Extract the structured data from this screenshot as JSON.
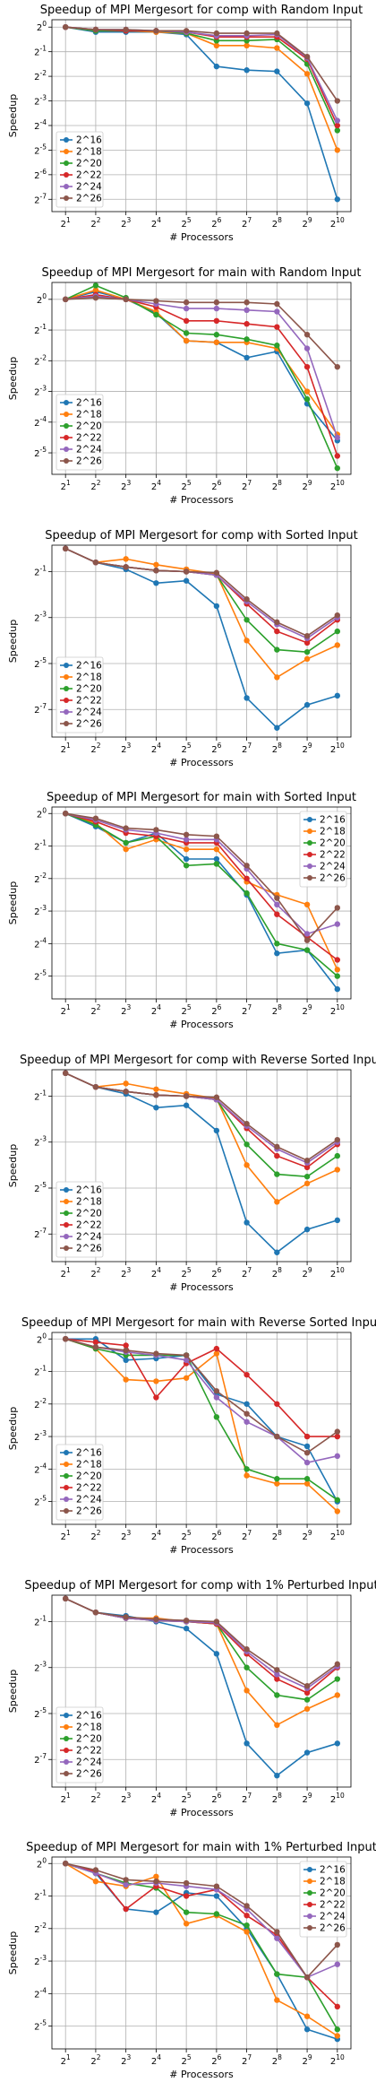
{
  "colors": [
    "#1f77b4",
    "#ff7f0e",
    "#2ca02c",
    "#d62728",
    "#9467bd",
    "#8c564b"
  ],
  "chart_data": [
    {
      "type": "line",
      "title": "Speedup of MPI Mergesort for comp with Random Input",
      "xlabel": "# Processors",
      "ylabel": "Speedup",
      "x_exponents": [
        1,
        2,
        3,
        4,
        5,
        6,
        7,
        8,
        9,
        10
      ],
      "x_ticks": [
        "2^1",
        "2^2",
        "2^3",
        "2^4",
        "2^5",
        "2^6",
        "2^7",
        "2^8",
        "2^9",
        "2^10"
      ],
      "y_scale": "log2",
      "y_exp_range": [
        -7.5,
        0.3
      ],
      "y_ticks": [
        "2^0",
        "2^-1",
        "2^-2",
        "2^-3",
        "2^-4",
        "2^-5",
        "2^-6",
        "2^-7"
      ],
      "y_tick_exps": [
        0,
        -1,
        -2,
        -3,
        -4,
        -5,
        -6,
        -7
      ],
      "legend": "lower-left",
      "grid": true,
      "series": [
        {
          "name": "2^16",
          "log2_values": [
            0,
            -0.2,
            -0.2,
            -0.2,
            -0.3,
            -1.6,
            -1.75,
            -1.8,
            -3.1,
            -7.0
          ]
        },
        {
          "name": "2^18",
          "log2_values": [
            0,
            -0.15,
            -0.15,
            -0.2,
            -0.25,
            -0.75,
            -0.75,
            -0.85,
            -1.9,
            -5.0
          ]
        },
        {
          "name": "2^20",
          "log2_values": [
            0,
            -0.15,
            -0.15,
            -0.15,
            -0.25,
            -0.55,
            -0.55,
            -0.5,
            -1.5,
            -4.2
          ]
        },
        {
          "name": "2^22",
          "log2_values": [
            0,
            -0.1,
            -0.15,
            -0.15,
            -0.2,
            -0.4,
            -0.4,
            -0.4,
            -1.3,
            -4.0
          ]
        },
        {
          "name": "2^24",
          "log2_values": [
            0,
            -0.1,
            -0.1,
            -0.15,
            -0.2,
            -0.35,
            -0.35,
            -0.3,
            -1.25,
            -3.8
          ]
        },
        {
          "name": "2^26",
          "log2_values": [
            0,
            -0.1,
            -0.1,
            -0.15,
            -0.15,
            -0.25,
            -0.25,
            -0.25,
            -1.2,
            -3.0
          ]
        }
      ]
    },
    {
      "type": "line",
      "title": "Speedup of MPI Mergesort for main with Random Input",
      "xlabel": "# Processors",
      "ylabel": "Speedup",
      "x_exponents": [
        1,
        2,
        3,
        4,
        5,
        6,
        7,
        8,
        9,
        10
      ],
      "x_ticks": [
        "2^1",
        "2^2",
        "2^3",
        "2^4",
        "2^5",
        "2^6",
        "2^7",
        "2^8",
        "2^9",
        "2^10"
      ],
      "y_scale": "log2",
      "y_exp_range": [
        -5.7,
        0.55
      ],
      "y_ticks": [
        "2^0",
        "2^-1",
        "2^-2",
        "2^-3",
        "2^-4",
        "2^-5"
      ],
      "y_tick_exps": [
        0,
        -1,
        -2,
        -3,
        -4,
        -5
      ],
      "legend": "lower-left",
      "grid": true,
      "series": [
        {
          "name": "2^16",
          "log2_values": [
            0,
            0.25,
            0.0,
            -0.45,
            -1.35,
            -1.4,
            -1.9,
            -1.7,
            -3.4,
            -4.6
          ]
        },
        {
          "name": "2^18",
          "log2_values": [
            0,
            0.3,
            0.0,
            -0.4,
            -1.35,
            -1.4,
            -1.4,
            -1.6,
            -3.0,
            -4.4
          ]
        },
        {
          "name": "2^20",
          "log2_values": [
            0,
            0.45,
            0.05,
            -0.5,
            -1.1,
            -1.15,
            -1.3,
            -1.5,
            -3.25,
            -5.5
          ]
        },
        {
          "name": "2^22",
          "log2_values": [
            0,
            0.15,
            0.0,
            -0.25,
            -0.7,
            -0.7,
            -0.8,
            -0.9,
            -2.2,
            -5.1
          ]
        },
        {
          "name": "2^24",
          "log2_values": [
            0,
            0.1,
            0.0,
            -0.15,
            -0.3,
            -0.3,
            -0.35,
            -0.4,
            -1.6,
            -4.5
          ]
        },
        {
          "name": "2^26",
          "log2_values": [
            0,
            0.05,
            0.0,
            -0.05,
            -0.1,
            -0.1,
            -0.1,
            -0.15,
            -1.15,
            -2.2
          ]
        }
      ]
    },
    {
      "type": "line",
      "title": "Speedup of MPI Mergesort for comp with Sorted Input",
      "xlabel": "# Processors",
      "ylabel": "Speedup",
      "x_exponents": [
        1,
        2,
        3,
        4,
        5,
        6,
        7,
        8,
        9,
        10
      ],
      "x_ticks": [
        "2^1",
        "2^2",
        "2^3",
        "2^4",
        "2^5",
        "2^6",
        "2^7",
        "2^8",
        "2^9",
        "2^10"
      ],
      "y_scale": "log2",
      "y_exp_range": [
        -8.2,
        0.15
      ],
      "y_ticks": [
        "2^-1",
        "2^-3",
        "2^-5",
        "2^-7"
      ],
      "y_tick_exps": [
        -1,
        -3,
        -5,
        -7
      ],
      "legend": "lower-left",
      "grid": true,
      "series": [
        {
          "name": "2^16",
          "log2_values": [
            0,
            -0.6,
            -0.9,
            -1.5,
            -1.4,
            -2.5,
            -6.5,
            -7.8,
            -6.8,
            -6.4
          ]
        },
        {
          "name": "2^18",
          "log2_values": [
            0,
            -0.6,
            -0.45,
            -0.7,
            -0.9,
            -1.1,
            -4.0,
            -5.6,
            -4.8,
            -4.2
          ]
        },
        {
          "name": "2^20",
          "log2_values": [
            0,
            -0.6,
            -0.8,
            -0.95,
            -1.0,
            -1.15,
            -3.1,
            -4.4,
            -4.5,
            -3.6
          ]
        },
        {
          "name": "2^22",
          "log2_values": [
            0,
            -0.6,
            -0.8,
            -0.95,
            -1.0,
            -1.15,
            -2.4,
            -3.6,
            -4.1,
            -3.1
          ]
        },
        {
          "name": "2^24",
          "log2_values": [
            0,
            -0.6,
            -0.8,
            -0.95,
            -1.0,
            -1.15,
            -2.3,
            -3.3,
            -3.9,
            -3.0
          ]
        },
        {
          "name": "2^26",
          "log2_values": [
            0,
            -0.6,
            -0.8,
            -0.95,
            -1.0,
            -1.05,
            -2.2,
            -3.2,
            -3.8,
            -2.9
          ]
        }
      ]
    },
    {
      "type": "line",
      "title": "Speedup of MPI Mergesort for main with Sorted Input",
      "xlabel": "# Processors",
      "ylabel": "Speedup",
      "x_exponents": [
        1,
        2,
        3,
        4,
        5,
        6,
        7,
        8,
        9,
        10
      ],
      "x_ticks": [
        "2^1",
        "2^2",
        "2^3",
        "2^4",
        "2^5",
        "2^6",
        "2^7",
        "2^8",
        "2^9",
        "2^10"
      ],
      "y_scale": "log2",
      "y_exp_range": [
        -5.7,
        0.2
      ],
      "y_ticks": [
        "2^0",
        "2^-1",
        "2^-2",
        "2^-3",
        "2^-4",
        "2^-5"
      ],
      "y_tick_exps": [
        0,
        -1,
        -2,
        -3,
        -4,
        -5
      ],
      "legend": "upper-right",
      "grid": true,
      "series": [
        {
          "name": "2^16",
          "log2_values": [
            0,
            -0.4,
            -0.9,
            -0.6,
            -1.4,
            -1.4,
            -2.5,
            -4.3,
            -4.2,
            -5.4
          ]
        },
        {
          "name": "2^18",
          "log2_values": [
            0,
            -0.3,
            -1.1,
            -0.8,
            -1.1,
            -1.1,
            -2.1,
            -2.5,
            -2.8,
            -4.8
          ]
        },
        {
          "name": "2^20",
          "log2_values": [
            0,
            -0.35,
            -0.9,
            -0.7,
            -1.6,
            -1.55,
            -2.45,
            -4.0,
            -4.2,
            -5.0
          ]
        },
        {
          "name": "2^22",
          "log2_values": [
            0,
            -0.25,
            -0.6,
            -0.7,
            -0.9,
            -0.9,
            -2.0,
            -3.1,
            -3.8,
            -4.5
          ]
        },
        {
          "name": "2^24",
          "log2_values": [
            0,
            -0.2,
            -0.5,
            -0.6,
            -0.8,
            -0.8,
            -1.7,
            -2.8,
            -3.7,
            -3.4
          ]
        },
        {
          "name": "2^26",
          "log2_values": [
            0,
            -0.15,
            -0.45,
            -0.5,
            -0.65,
            -0.7,
            -1.6,
            -2.6,
            -3.9,
            -2.9
          ]
        }
      ]
    },
    {
      "type": "line",
      "title": "Speedup of MPI Mergesort for comp with Reverse Sorted Input",
      "xlabel": "# Processors",
      "ylabel": "Speedup",
      "x_exponents": [
        1,
        2,
        3,
        4,
        5,
        6,
        7,
        8,
        9,
        10
      ],
      "x_ticks": [
        "2^1",
        "2^2",
        "2^3",
        "2^4",
        "2^5",
        "2^6",
        "2^7",
        "2^8",
        "2^9",
        "2^10"
      ],
      "y_scale": "log2",
      "y_exp_range": [
        -8.2,
        0.15
      ],
      "y_ticks": [
        "2^-1",
        "2^-3",
        "2^-5",
        "2^-7"
      ],
      "y_tick_exps": [
        -1,
        -3,
        -5,
        -7
      ],
      "legend": "lower-left",
      "grid": true,
      "series": [
        {
          "name": "2^16",
          "log2_values": [
            0,
            -0.6,
            -0.9,
            -1.5,
            -1.4,
            -2.5,
            -6.5,
            -7.8,
            -6.8,
            -6.4
          ]
        },
        {
          "name": "2^18",
          "log2_values": [
            0,
            -0.6,
            -0.45,
            -0.7,
            -0.9,
            -1.1,
            -4.0,
            -5.6,
            -4.8,
            -4.2
          ]
        },
        {
          "name": "2^20",
          "log2_values": [
            0,
            -0.6,
            -0.8,
            -0.95,
            -1.0,
            -1.15,
            -3.1,
            -4.4,
            -4.5,
            -3.6
          ]
        },
        {
          "name": "2^22",
          "log2_values": [
            0,
            -0.6,
            -0.8,
            -0.95,
            -1.0,
            -1.15,
            -2.4,
            -3.6,
            -4.1,
            -3.1
          ]
        },
        {
          "name": "2^24",
          "log2_values": [
            0,
            -0.6,
            -0.8,
            -0.95,
            -1.0,
            -1.15,
            -2.3,
            -3.3,
            -3.9,
            -3.0
          ]
        },
        {
          "name": "2^26",
          "log2_values": [
            0,
            -0.6,
            -0.8,
            -0.95,
            -1.0,
            -1.05,
            -2.2,
            -3.2,
            -3.8,
            -2.9
          ]
        }
      ]
    },
    {
      "type": "line",
      "title": "Speedup of MPI Mergesort for main with Reverse Sorted Input",
      "xlabel": "# Processors",
      "ylabel": "Speedup",
      "x_exponents": [
        1,
        2,
        3,
        4,
        5,
        6,
        7,
        8,
        9,
        10
      ],
      "x_ticks": [
        "2^1",
        "2^2",
        "2^3",
        "2^4",
        "2^5",
        "2^6",
        "2^7",
        "2^8",
        "2^9",
        "2^10"
      ],
      "y_scale": "log2",
      "y_exp_range": [
        -5.7,
        0.2
      ],
      "y_ticks": [
        "2^0",
        "2^-1",
        "2^-2",
        "2^-3",
        "2^-4",
        "2^-5"
      ],
      "y_tick_exps": [
        0,
        -1,
        -2,
        -3,
        -4,
        -5
      ],
      "legend": "lower-left",
      "grid": true,
      "series": [
        {
          "name": "2^16",
          "log2_values": [
            0,
            0.0,
            -0.65,
            -0.6,
            -0.5,
            -1.7,
            -2.0,
            -3.0,
            -3.3,
            -5.0
          ]
        },
        {
          "name": "2^18",
          "log2_values": [
            0,
            -0.3,
            -1.25,
            -1.3,
            -1.2,
            -0.45,
            -4.2,
            -4.45,
            -4.45,
            -5.3
          ]
        },
        {
          "name": "2^20",
          "log2_values": [
            0,
            -0.3,
            -0.5,
            -0.5,
            -0.5,
            -2.4,
            -4.0,
            -4.3,
            -4.3,
            -4.95
          ]
        },
        {
          "name": "2^22",
          "log2_values": [
            0,
            -0.1,
            -0.2,
            -1.8,
            -0.75,
            -0.3,
            -1.1,
            -2.0,
            -3.0,
            -3.0
          ]
        },
        {
          "name": "2^24",
          "log2_values": [
            0,
            -0.25,
            -0.4,
            -0.5,
            -0.65,
            -1.8,
            -2.55,
            -3.0,
            -3.8,
            -3.6
          ]
        },
        {
          "name": "2^26",
          "log2_values": [
            0,
            -0.25,
            -0.35,
            -0.45,
            -0.5,
            -1.6,
            -2.3,
            -3.0,
            -3.5,
            -2.85
          ]
        }
      ]
    },
    {
      "type": "line",
      "title": "Speedup of MPI Mergesort for comp with 1% Perturbed Input",
      "xlabel": "# Processors",
      "ylabel": "Speedup",
      "x_exponents": [
        1,
        2,
        3,
        4,
        5,
        6,
        7,
        8,
        9,
        10
      ],
      "x_ticks": [
        "2^1",
        "2^2",
        "2^3",
        "2^4",
        "2^5",
        "2^6",
        "2^7",
        "2^8",
        "2^9",
        "2^10"
      ],
      "y_scale": "log2",
      "y_exp_range": [
        -8.2,
        0.15
      ],
      "y_ticks": [
        "2^-1",
        "2^-3",
        "2^-5",
        "2^-7"
      ],
      "y_tick_exps": [
        -1,
        -3,
        -5,
        -7
      ],
      "legend": "lower-left",
      "grid": true,
      "series": [
        {
          "name": "2^16",
          "log2_values": [
            0,
            -0.6,
            -0.75,
            -1.0,
            -1.3,
            -2.4,
            -6.3,
            -7.7,
            -6.7,
            -6.3
          ]
        },
        {
          "name": "2^18",
          "log2_values": [
            0,
            -0.6,
            -0.85,
            -0.85,
            -1.0,
            -1.1,
            -4.0,
            -5.5,
            -4.8,
            -4.2
          ]
        },
        {
          "name": "2^20",
          "log2_values": [
            0,
            -0.6,
            -0.85,
            -0.95,
            -1.0,
            -1.1,
            -3.0,
            -4.2,
            -4.4,
            -3.5
          ]
        },
        {
          "name": "2^22",
          "log2_values": [
            0,
            -0.6,
            -0.85,
            -0.95,
            -1.0,
            -1.1,
            -2.4,
            -3.5,
            -4.1,
            -3.0
          ]
        },
        {
          "name": "2^24",
          "log2_values": [
            0,
            -0.6,
            -0.85,
            -0.95,
            -1.0,
            -1.05,
            -2.3,
            -3.3,
            -3.9,
            -2.95
          ]
        },
        {
          "name": "2^26",
          "log2_values": [
            0,
            -0.6,
            -0.8,
            -0.9,
            -0.95,
            -1.0,
            -2.2,
            -3.1,
            -3.8,
            -2.85
          ]
        }
      ]
    },
    {
      "type": "line",
      "title": "Speedup of MPI Mergesort for main with 1% Perturbed Input",
      "xlabel": "# Processors",
      "ylabel": "Speedup",
      "x_exponents": [
        1,
        2,
        3,
        4,
        5,
        6,
        7,
        8,
        9,
        10
      ],
      "x_ticks": [
        "2^1",
        "2^2",
        "2^3",
        "2^4",
        "2^5",
        "2^6",
        "2^7",
        "2^8",
        "2^9",
        "2^10"
      ],
      "y_scale": "log2",
      "y_exp_range": [
        -5.7,
        0.2
      ],
      "y_ticks": [
        "2^0",
        "2^-1",
        "2^-2",
        "2^-3",
        "2^-4",
        "2^-5"
      ],
      "y_tick_exps": [
        0,
        -1,
        -2,
        -3,
        -4,
        -5
      ],
      "legend": "upper-right",
      "grid": true,
      "series": [
        {
          "name": "2^16",
          "log2_values": [
            0,
            -0.3,
            -1.4,
            -1.5,
            -0.9,
            -1.0,
            -2.0,
            -3.4,
            -5.1,
            -5.4
          ]
        },
        {
          "name": "2^18",
          "log2_values": [
            0,
            -0.55,
            -0.7,
            -0.4,
            -1.85,
            -1.6,
            -2.1,
            -4.2,
            -4.7,
            -5.3
          ]
        },
        {
          "name": "2^20",
          "log2_values": [
            0,
            -0.3,
            -0.6,
            -0.75,
            -1.5,
            -1.55,
            -1.9,
            -3.4,
            -3.5,
            -5.1
          ]
        },
        {
          "name": "2^22",
          "log2_values": [
            0,
            -0.25,
            -1.4,
            -0.7,
            -1.0,
            -0.8,
            -1.6,
            -2.2,
            -3.5,
            -4.4
          ]
        },
        {
          "name": "2^24",
          "log2_values": [
            0,
            -0.3,
            -0.65,
            -0.6,
            -0.7,
            -0.8,
            -1.4,
            -2.3,
            -3.5,
            -3.1
          ]
        },
        {
          "name": "2^26",
          "log2_values": [
            0,
            -0.2,
            -0.5,
            -0.55,
            -0.6,
            -0.7,
            -1.3,
            -2.1,
            -3.5,
            -2.5
          ]
        }
      ]
    }
  ]
}
